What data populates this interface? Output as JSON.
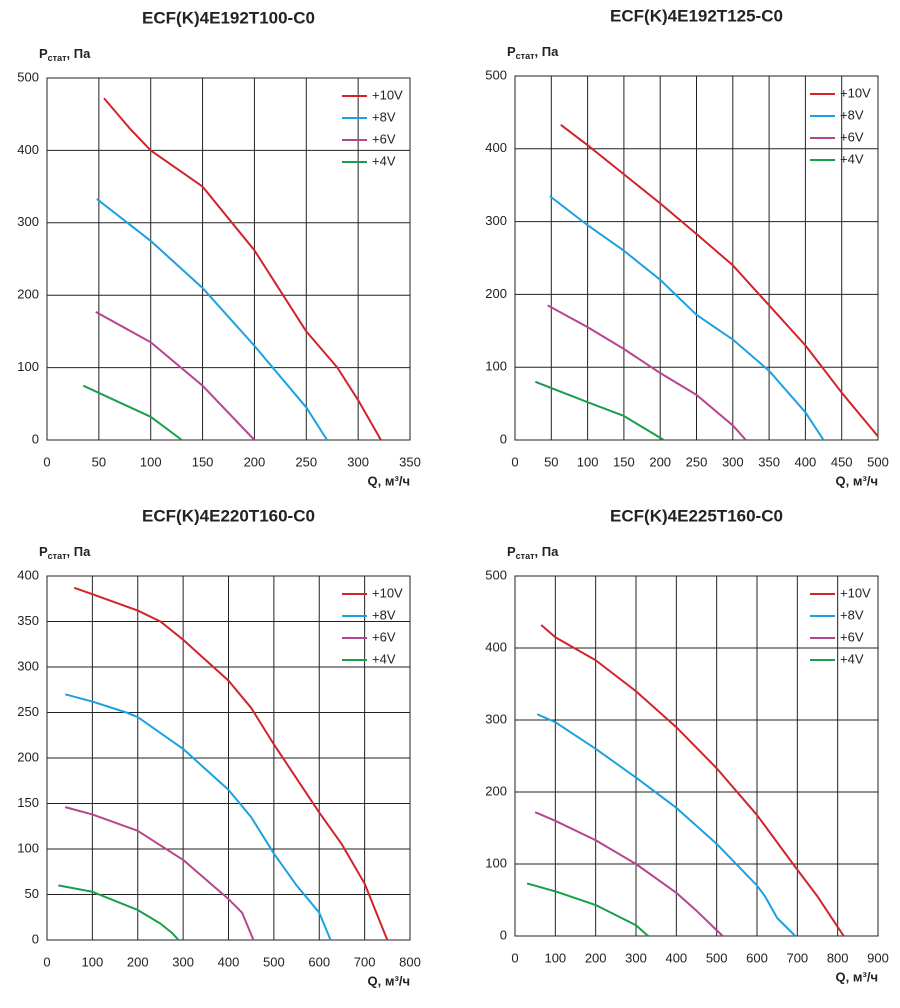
{
  "chart_data": [
    {
      "type": "line",
      "title": "ECF(K)4E192T100-C0",
      "ylabel": [
        "P",
        "стат",
        ", Па"
      ],
      "xlabel": "Q, м³/ч",
      "xlim": [
        0,
        350
      ],
      "xticks": [
        0,
        50,
        100,
        150,
        200,
        250,
        300,
        350
      ],
      "ylim": [
        0,
        500
      ],
      "yticks": [
        0,
        100,
        200,
        300,
        400,
        500
      ],
      "grid": true,
      "legend": "top-right",
      "series": [
        {
          "name": "+10V",
          "color": "#d2232a",
          "x": [
            55,
            80,
            100,
            150,
            200,
            250,
            280,
            300,
            322
          ],
          "values": [
            472,
            430,
            400,
            350,
            262,
            150,
            100,
            55,
            0
          ]
        },
        {
          "name": "+8V",
          "color": "#1ba1e2",
          "x": [
            48,
            100,
            150,
            200,
            250,
            270
          ],
          "values": [
            333,
            275,
            210,
            130,
            45,
            0
          ]
        },
        {
          "name": "+6V",
          "color": "#b5458f",
          "x": [
            47,
            100,
            150,
            200
          ],
          "values": [
            177,
            135,
            75,
            0
          ]
        },
        {
          "name": "+4V",
          "color": "#1a9e4b",
          "x": [
            35,
            100,
            130
          ],
          "values": [
            75,
            32,
            0
          ]
        }
      ]
    },
    {
      "type": "line",
      "title": "ECF(K)4E192T125-C0",
      "ylabel": [
        "P",
        "стат",
        ", Па"
      ],
      "xlabel": "Q, м³/ч",
      "xlim": [
        0,
        500
      ],
      "xticks": [
        0,
        50,
        100,
        150,
        200,
        250,
        300,
        350,
        400,
        450,
        500
      ],
      "ylim": [
        0,
        500
      ],
      "yticks": [
        0,
        100,
        200,
        300,
        400,
        500
      ],
      "grid": true,
      "legend": "top-right",
      "series": [
        {
          "name": "+10V",
          "color": "#d2232a",
          "x": [
            63,
            100,
            150,
            200,
            250,
            300,
            350,
            400,
            450,
            500
          ],
          "values": [
            433,
            405,
            365,
            325,
            283,
            240,
            185,
            130,
            65,
            5
          ]
        },
        {
          "name": "+8V",
          "color": "#1ba1e2",
          "x": [
            48,
            100,
            150,
            200,
            250,
            300,
            350,
            400,
            425
          ],
          "values": [
            335,
            295,
            260,
            220,
            172,
            138,
            95,
            38,
            0
          ]
        },
        {
          "name": "+6V",
          "color": "#b5458f",
          "x": [
            45,
            100,
            150,
            200,
            250,
            300,
            318
          ],
          "values": [
            185,
            155,
            125,
            92,
            62,
            20,
            0
          ]
        },
        {
          "name": "+4V",
          "color": "#1a9e4b",
          "x": [
            28,
            100,
            150,
            205
          ],
          "values": [
            80,
            52,
            33,
            0
          ]
        }
      ]
    },
    {
      "type": "line",
      "title": "ECF(K)4E220T160-C0",
      "ylabel": [
        "P",
        "стат",
        ", Па"
      ],
      "xlabel": "Q, м³/ч",
      "xlim": [
        0,
        800
      ],
      "xticks": [
        0,
        100,
        200,
        300,
        400,
        500,
        600,
        700,
        800
      ],
      "ylim": [
        0,
        400
      ],
      "yticks": [
        0,
        50,
        100,
        150,
        200,
        250,
        300,
        350,
        400
      ],
      "grid": true,
      "legend": "top-right",
      "series": [
        {
          "name": "+10V",
          "color": "#d2232a",
          "x": [
            60,
            100,
            200,
            250,
            300,
            400,
            450,
            500,
            600,
            650,
            700,
            750
          ],
          "values": [
            387,
            380,
            362,
            350,
            330,
            285,
            255,
            215,
            140,
            105,
            62,
            0
          ]
        },
        {
          "name": "+8V",
          "color": "#1ba1e2",
          "x": [
            40,
            100,
            175,
            200,
            300,
            400,
            450,
            500,
            550,
            600,
            625
          ],
          "values": [
            270,
            262,
            250,
            245,
            210,
            165,
            135,
            95,
            60,
            30,
            0
          ]
        },
        {
          "name": "+6V",
          "color": "#b5458f",
          "x": [
            40,
            100,
            200,
            300,
            400,
            430,
            455
          ],
          "values": [
            146,
            138,
            120,
            88,
            45,
            30,
            0
          ]
        },
        {
          "name": "+4V",
          "color": "#1a9e4b",
          "x": [
            25,
            100,
            200,
            250,
            275,
            290
          ],
          "values": [
            60,
            53,
            33,
            18,
            8,
            0
          ]
        }
      ]
    },
    {
      "type": "line",
      "title": "ECF(K)4E225T160-C0",
      "ylabel": [
        "P",
        "стат",
        ", Па"
      ],
      "xlabel": "Q, м³/ч",
      "xlim": [
        0,
        900
      ],
      "xticks": [
        0,
        100,
        200,
        300,
        400,
        500,
        600,
        700,
        800,
        900
      ],
      "ylim": [
        0,
        500
      ],
      "yticks": [
        0,
        100,
        200,
        300,
        400,
        500
      ],
      "grid": true,
      "legend": "top-right",
      "series": [
        {
          "name": "+10V",
          "color": "#d2232a",
          "x": [
            65,
            100,
            200,
            300,
            400,
            500,
            600,
            700,
            750,
            815
          ],
          "values": [
            432,
            415,
            383,
            340,
            290,
            233,
            168,
            92,
            55,
            0
          ]
        },
        {
          "name": "+8V",
          "color": "#1ba1e2",
          "x": [
            55,
            100,
            200,
            300,
            400,
            500,
            600,
            620,
            650,
            695
          ],
          "values": [
            308,
            297,
            260,
            220,
            178,
            128,
            70,
            55,
            25,
            0
          ]
        },
        {
          "name": "+6V",
          "color": "#b5458f",
          "x": [
            50,
            100,
            200,
            300,
            400,
            450,
            515
          ],
          "values": [
            172,
            160,
            133,
            100,
            60,
            35,
            0
          ]
        },
        {
          "name": "+4V",
          "color": "#1a9e4b",
          "x": [
            30,
            100,
            200,
            300,
            330
          ],
          "values": [
            73,
            62,
            43,
            15,
            0
          ]
        }
      ]
    }
  ]
}
